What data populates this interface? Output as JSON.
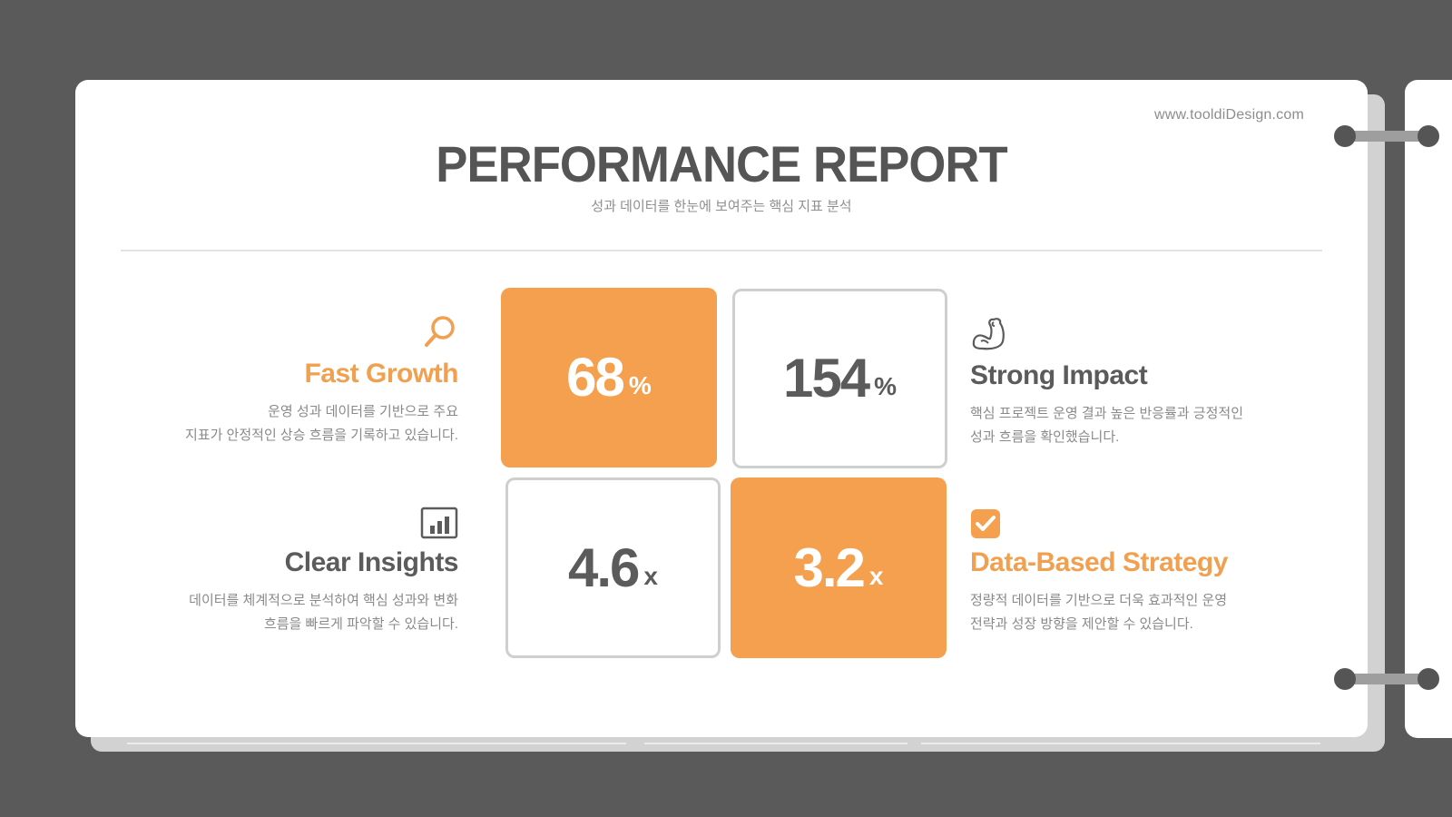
{
  "header": {
    "website": "www.tooldiDesign.com",
    "title": "PERFORMANCE REPORT",
    "subtitle": "성과 데이터를 한눈에 보여주는 핵심 지표 분석"
  },
  "metrics": [
    {
      "value": "68",
      "unit": "%"
    },
    {
      "value": "154",
      "unit": "%"
    },
    {
      "value": "4.6",
      "unit": "x"
    },
    {
      "value": "3.2",
      "unit": "x"
    }
  ],
  "features": {
    "fast_growth": {
      "title": "Fast Growth",
      "desc_line1": "운영 성과 데이터를 기반으로 주요",
      "desc_line2": "지표가 안정적인 상승 흐름을 기록하고 있습니다.",
      "icon": "search-icon"
    },
    "strong_impact": {
      "title": "Strong Impact",
      "desc_line1": "핵심 프로젝트 운영 결과 높은 반응률과 긍정적인",
      "desc_line2": "성과 흐름을 확인했습니다.",
      "icon": "muscle-arm-icon"
    },
    "clear_insights": {
      "title": "Clear Insights",
      "desc_line1": "데이터를 체계적으로 분석하여 핵심 성과와 변화",
      "desc_line2": "흐름을 빠르게 파악할 수 있습니다.",
      "icon": "bar-chart-icon"
    },
    "data_strategy": {
      "title": "Data-Based Strategy",
      "desc_line1": "정량적 데이터를 기반으로 더욱 효과적인 운영",
      "desc_line2": "전략과 성장 방향을 제안할 수 있습니다.",
      "icon": "checkbox-icon"
    }
  },
  "colors": {
    "accent": "#f5a04e",
    "text_dark": "#555555",
    "background": "#5a5a5a"
  }
}
